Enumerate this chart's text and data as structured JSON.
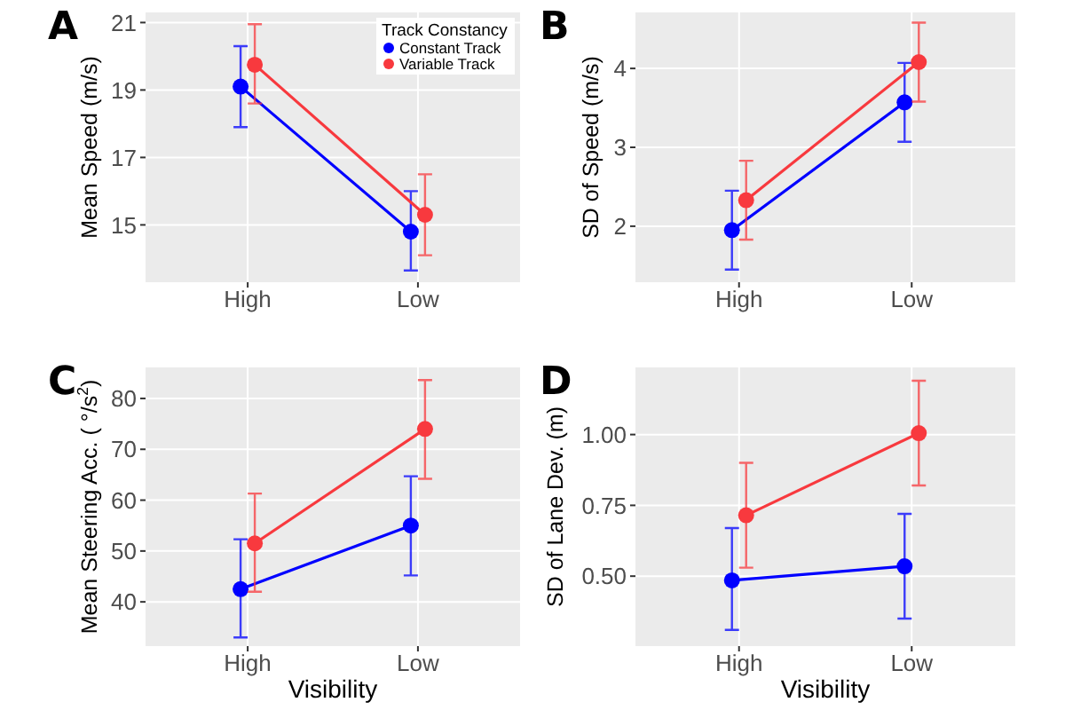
{
  "chart_data": [
    {
      "type": "line",
      "annotations": [
        "A"
      ],
      "ylabel": "Mean Speed (m/s)",
      "categories": [
        "High",
        "Low"
      ],
      "ylim": [
        13.3,
        21.3
      ],
      "yticks": [
        15,
        17,
        19,
        21
      ],
      "grid": true,
      "marker": "circle",
      "legend": "top right",
      "legend_title": "Track Constancy",
      "series": [
        {
          "name": "Constant Track",
          "color": "#0000ff",
          "values": [
            19.1,
            14.8
          ],
          "errors": [
            [
              17.9,
              20.3
            ],
            [
              13.65,
              16.0
            ]
          ]
        },
        {
          "name": "Variable Track",
          "color": "#f8393e",
          "values": [
            19.75,
            15.3
          ],
          "errors": [
            [
              18.6,
              20.95
            ],
            [
              14.1,
              16.5
            ]
          ]
        }
      ]
    },
    {
      "type": "line",
      "annotations": [
        "B"
      ],
      "ylabel": "SD of Speed (m/s)",
      "categories": [
        "High",
        "Low"
      ],
      "ylim": [
        1.29,
        4.71
      ],
      "yticks": [
        2,
        3,
        4
      ],
      "grid": true,
      "marker": "circle",
      "series": [
        {
          "color": "#0000ff",
          "values": [
            1.95,
            3.57
          ],
          "errors": [
            [
              1.45,
              2.45
            ],
            [
              3.07,
              4.07
            ]
          ]
        },
        {
          "color": "#f8393e",
          "values": [
            2.33,
            4.08
          ],
          "errors": [
            [
              1.83,
              2.83
            ],
            [
              3.58,
              4.58
            ]
          ]
        }
      ]
    },
    {
      "type": "line",
      "annotations": [
        "C"
      ],
      "ylabel": "Mean Steering Acc. ( °/s$^{2}$)",
      "xlabel": "Visibility",
      "categories": [
        "High",
        "Low"
      ],
      "ylim": [
        31.3,
        86.1
      ],
      "yticks": [
        40,
        50,
        60,
        70,
        80
      ],
      "grid": true,
      "marker": "circle",
      "series": [
        {
          "color": "#0000ff",
          "values": [
            42.5,
            55
          ],
          "errors": [
            [
              33,
              52.3
            ],
            [
              45.2,
              64.7
            ]
          ]
        },
        {
          "color": "#f8393e",
          "values": [
            51.5,
            74
          ],
          "errors": [
            [
              42,
              61.3
            ],
            [
              64.2,
              83.6
            ]
          ]
        }
      ]
    },
    {
      "type": "line",
      "annotations": [
        "D"
      ],
      "ylabel": "SD of Lane Dev. (m)",
      "xlabel": "Visibility",
      "categories": [
        "High",
        "Low"
      ],
      "ylim": [
        0.253,
        1.237
      ],
      "yticks": [
        {
          "value": 0.5,
          "label": "0.50"
        },
        {
          "value": 0.75,
          "label": "0.75"
        },
        {
          "value": 1,
          "label": "1.00"
        }
      ],
      "grid": true,
      "marker": "circle",
      "series": [
        {
          "color": "#0000ff",
          "values": [
            0.485,
            0.535
          ],
          "errors": [
            [
              0.31,
              0.67
            ],
            [
              0.35,
              0.72
            ]
          ]
        },
        {
          "color": "#f8393e",
          "values": [
            0.715,
            1.005
          ],
          "errors": [
            [
              0.53,
              0.9
            ],
            [
              0.82,
              1.19
            ]
          ]
        }
      ]
    }
  ]
}
